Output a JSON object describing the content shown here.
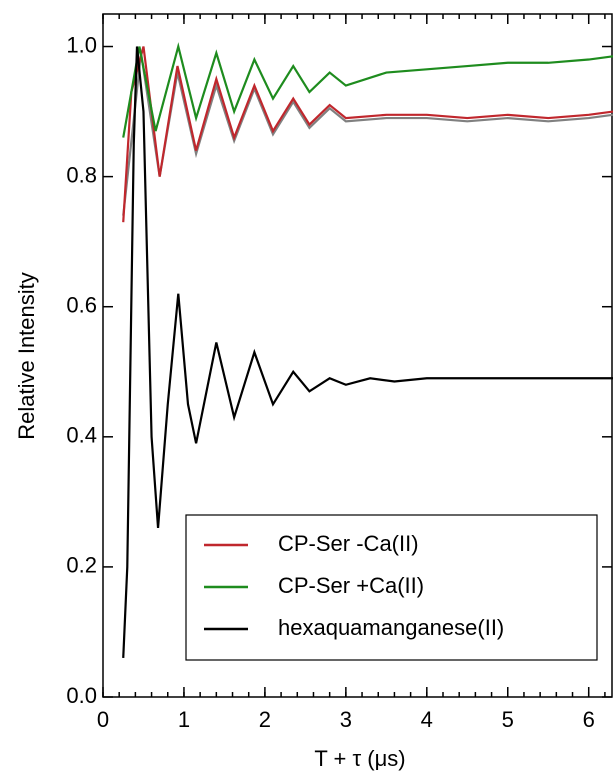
{
  "chart_data": {
    "type": "line",
    "x_label": "T + τ (μs)",
    "y_label": "Relative Intensity",
    "xlim": [
      0,
      6.3
    ],
    "ylim": [
      0,
      1.05
    ],
    "xticks": [
      0,
      1,
      2,
      3,
      4,
      5,
      6
    ],
    "yticks": [
      {
        "value": 0,
        "label": "0.0"
      },
      0.2,
      0.4,
      0.6,
      0.8,
      {
        "value": 1,
        "label": "1.0"
      }
    ],
    "legend": "lower right",
    "series": [
      {
        "color": "#808080",
        "x": [
          0.25,
          0.47,
          0.7,
          0.92,
          1.15,
          1.4,
          1.62,
          1.87,
          2.1,
          2.35,
          2.55,
          2.8,
          3.0,
          3.5,
          4.0,
          4.5,
          5.0,
          5.5,
          6.0,
          6.3
        ],
        "values": [
          0.74,
          0.99,
          0.8,
          0.96,
          0.835,
          0.94,
          0.855,
          0.935,
          0.865,
          0.915,
          0.875,
          0.905,
          0.885,
          0.89,
          0.89,
          0.885,
          0.89,
          0.885,
          0.89,
          0.895
        ]
      },
      {
        "name": "CP-Ser -Ca(II)",
        "color": "#c0272d",
        "x": [
          0.25,
          0.35,
          0.5,
          0.7,
          0.92,
          1.15,
          1.4,
          1.62,
          1.87,
          2.1,
          2.35,
          2.55,
          2.8,
          3.0,
          3.5,
          4.0,
          4.5,
          5.0,
          5.5,
          6.0,
          6.3
        ],
        "values": [
          0.73,
          0.93,
          1.0,
          0.8,
          0.97,
          0.84,
          0.95,
          0.86,
          0.94,
          0.87,
          0.92,
          0.88,
          0.91,
          0.89,
          0.895,
          0.895,
          0.89,
          0.895,
          0.89,
          0.895,
          0.9
        ]
      },
      {
        "name": "CP-Ser +Ca(II)",
        "color": "#1e8c1e",
        "x": [
          0.25,
          0.45,
          0.65,
          0.93,
          1.15,
          1.4,
          1.62,
          1.87,
          2.1,
          2.35,
          2.55,
          2.8,
          3.0,
          3.5,
          4.0,
          4.5,
          5.0,
          5.5,
          6.0,
          6.3
        ],
        "values": [
          0.86,
          1.0,
          0.87,
          1.0,
          0.89,
          0.99,
          0.9,
          0.98,
          0.92,
          0.97,
          0.93,
          0.96,
          0.94,
          0.96,
          0.965,
          0.97,
          0.975,
          0.975,
          0.98,
          0.985
        ]
      },
      {
        "name": "hexaquamanganese(II)",
        "color": "#000000",
        "x": [
          0.25,
          0.3,
          0.38,
          0.42,
          0.5,
          0.6,
          0.68,
          0.8,
          0.93,
          1.05,
          1.15,
          1.4,
          1.62,
          1.87,
          2.1,
          2.35,
          2.55,
          2.8,
          3.0,
          3.3,
          3.6,
          4.0,
          4.5,
          5.0,
          5.5,
          6.0,
          6.3
        ],
        "values": [
          0.06,
          0.2,
          0.85,
          1.0,
          0.9,
          0.4,
          0.26,
          0.45,
          0.62,
          0.45,
          0.39,
          0.545,
          0.43,
          0.53,
          0.45,
          0.5,
          0.47,
          0.49,
          0.48,
          0.49,
          0.485,
          0.49,
          0.49,
          0.49,
          0.49,
          0.49,
          0.49
        ]
      }
    ]
  }
}
